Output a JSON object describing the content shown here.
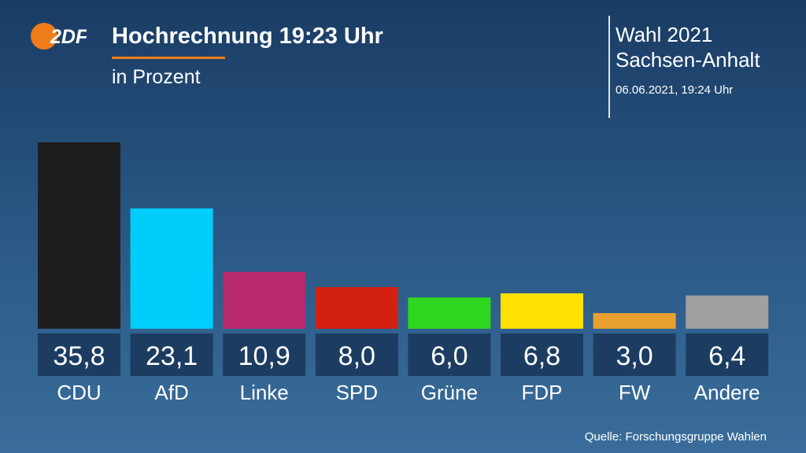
{
  "header": {
    "logo_text": "2DF",
    "title": "Hochrechnung 19:23 Uhr",
    "subtitle": "in Prozent"
  },
  "election": {
    "title": "Wahl 2021",
    "region": "Sachsen-Anhalt",
    "timestamp": "06.06.2021, 19:24 Uhr"
  },
  "colors": {
    "accent": "#f07d19",
    "value_box": "#1c3d61"
  },
  "chart_data": {
    "type": "bar",
    "title": "Hochrechnung 19:23 Uhr",
    "subtitle": "in Prozent",
    "categories": [
      "CDU",
      "AfD",
      "Linke",
      "SPD",
      "Grüne",
      "FDP",
      "FW",
      "Andere"
    ],
    "values": [
      35.8,
      23.1,
      10.9,
      8.0,
      6.0,
      6.8,
      3.0,
      6.4
    ],
    "value_labels": [
      "35,8",
      "23,1",
      "10,9",
      "8,0",
      "6,0",
      "6,8",
      "3,0",
      "6,4"
    ],
    "colors": [
      "#1e1e1e",
      "#00cdfc",
      "#b8286d",
      "#d32010",
      "#2ed61e",
      "#ffe100",
      "#e8a030",
      "#a0a0a0"
    ],
    "ylim": [
      0,
      35.8
    ],
    "grid": false,
    "legend": "none"
  },
  "footer": {
    "source": "Quelle: Forschungsgruppe Wahlen"
  }
}
